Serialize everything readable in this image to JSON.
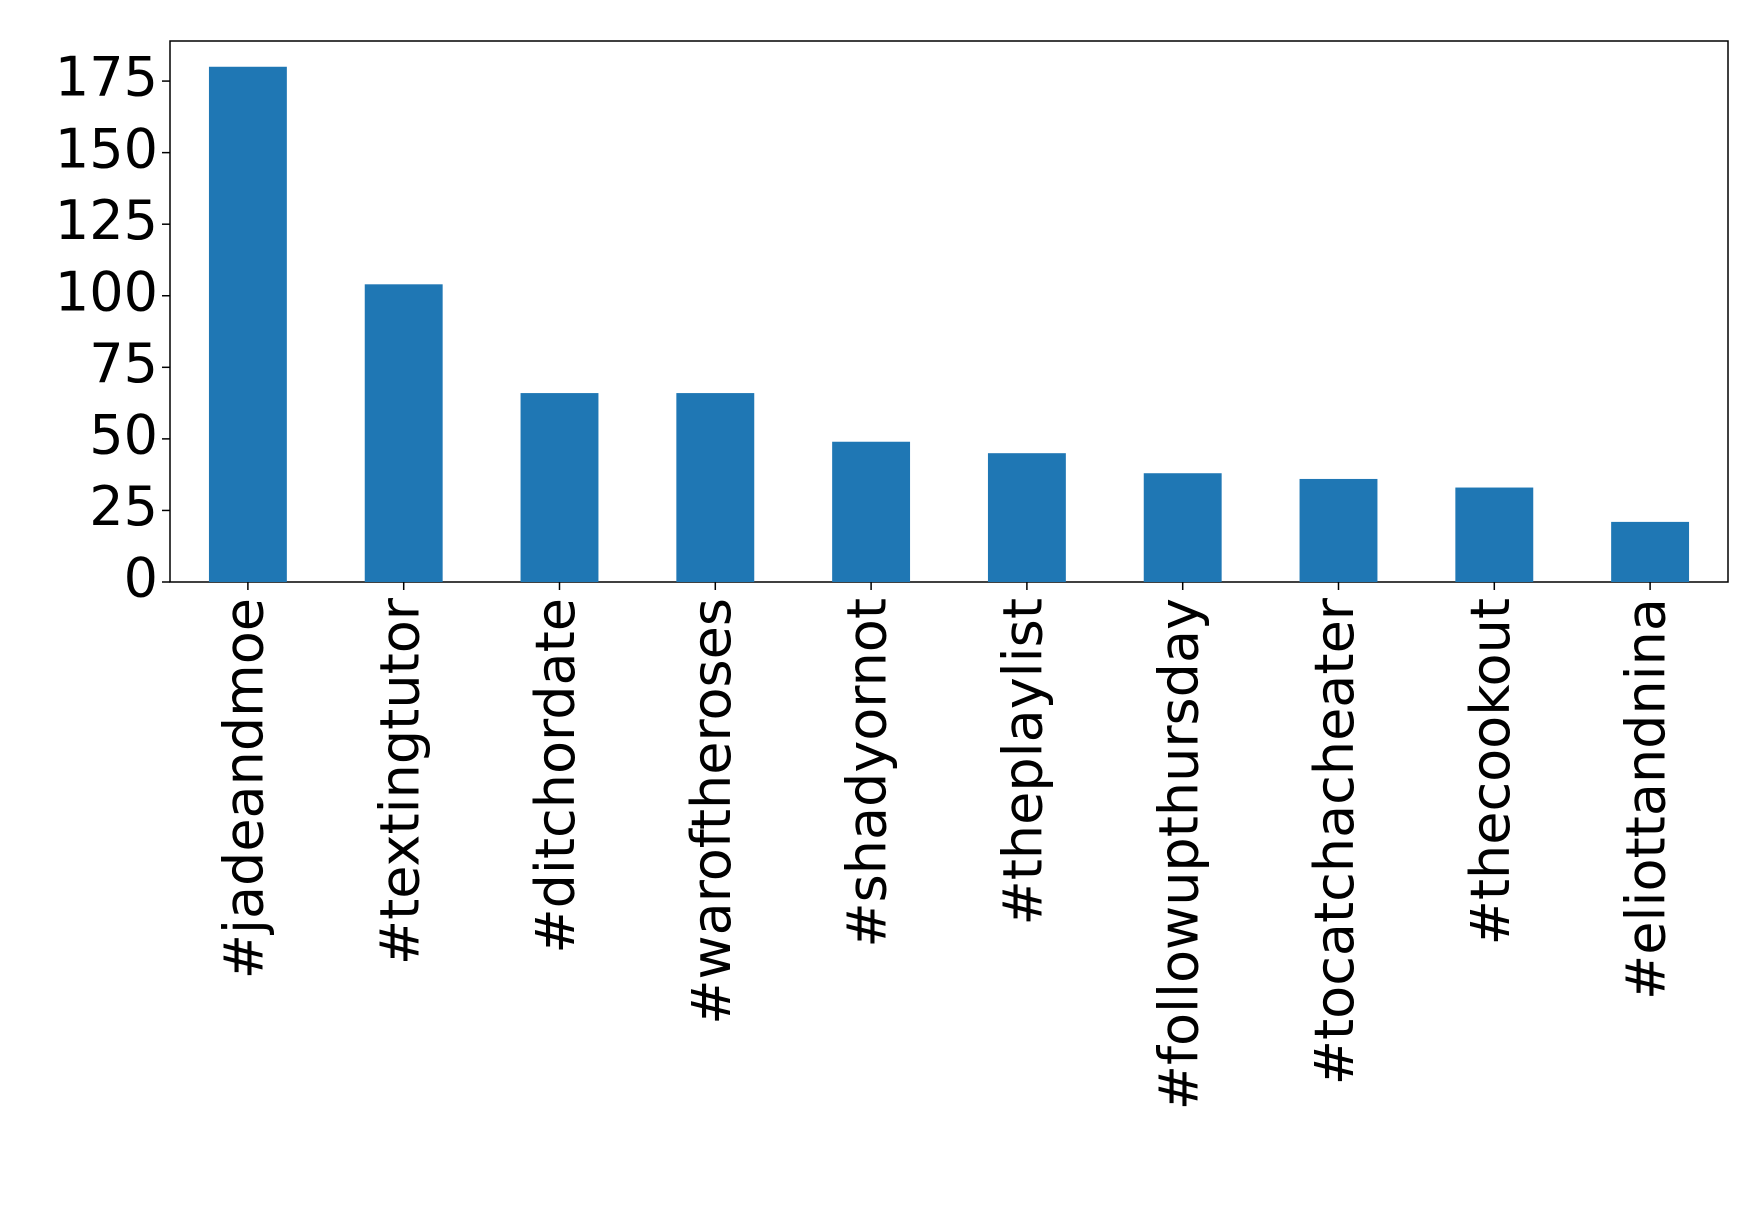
{
  "chart_data": {
    "type": "bar",
    "categories": [
      "#jadeandmoe",
      "#textingtutor",
      "#ditchordate",
      "#waroftheroses",
      "#shadyornot",
      "#theplaylist",
      "#followupthursday",
      "#tocatchacheater",
      "#thecookout",
      "#eliottandnina"
    ],
    "values": [
      180,
      104,
      66,
      66,
      49,
      45,
      38,
      36,
      33,
      21
    ],
    "color": "#1f77b4",
    "ylim": [
      0,
      189
    ],
    "yticks": [
      0,
      25,
      50,
      75,
      100,
      125,
      150,
      175
    ],
    "grid": false
  }
}
